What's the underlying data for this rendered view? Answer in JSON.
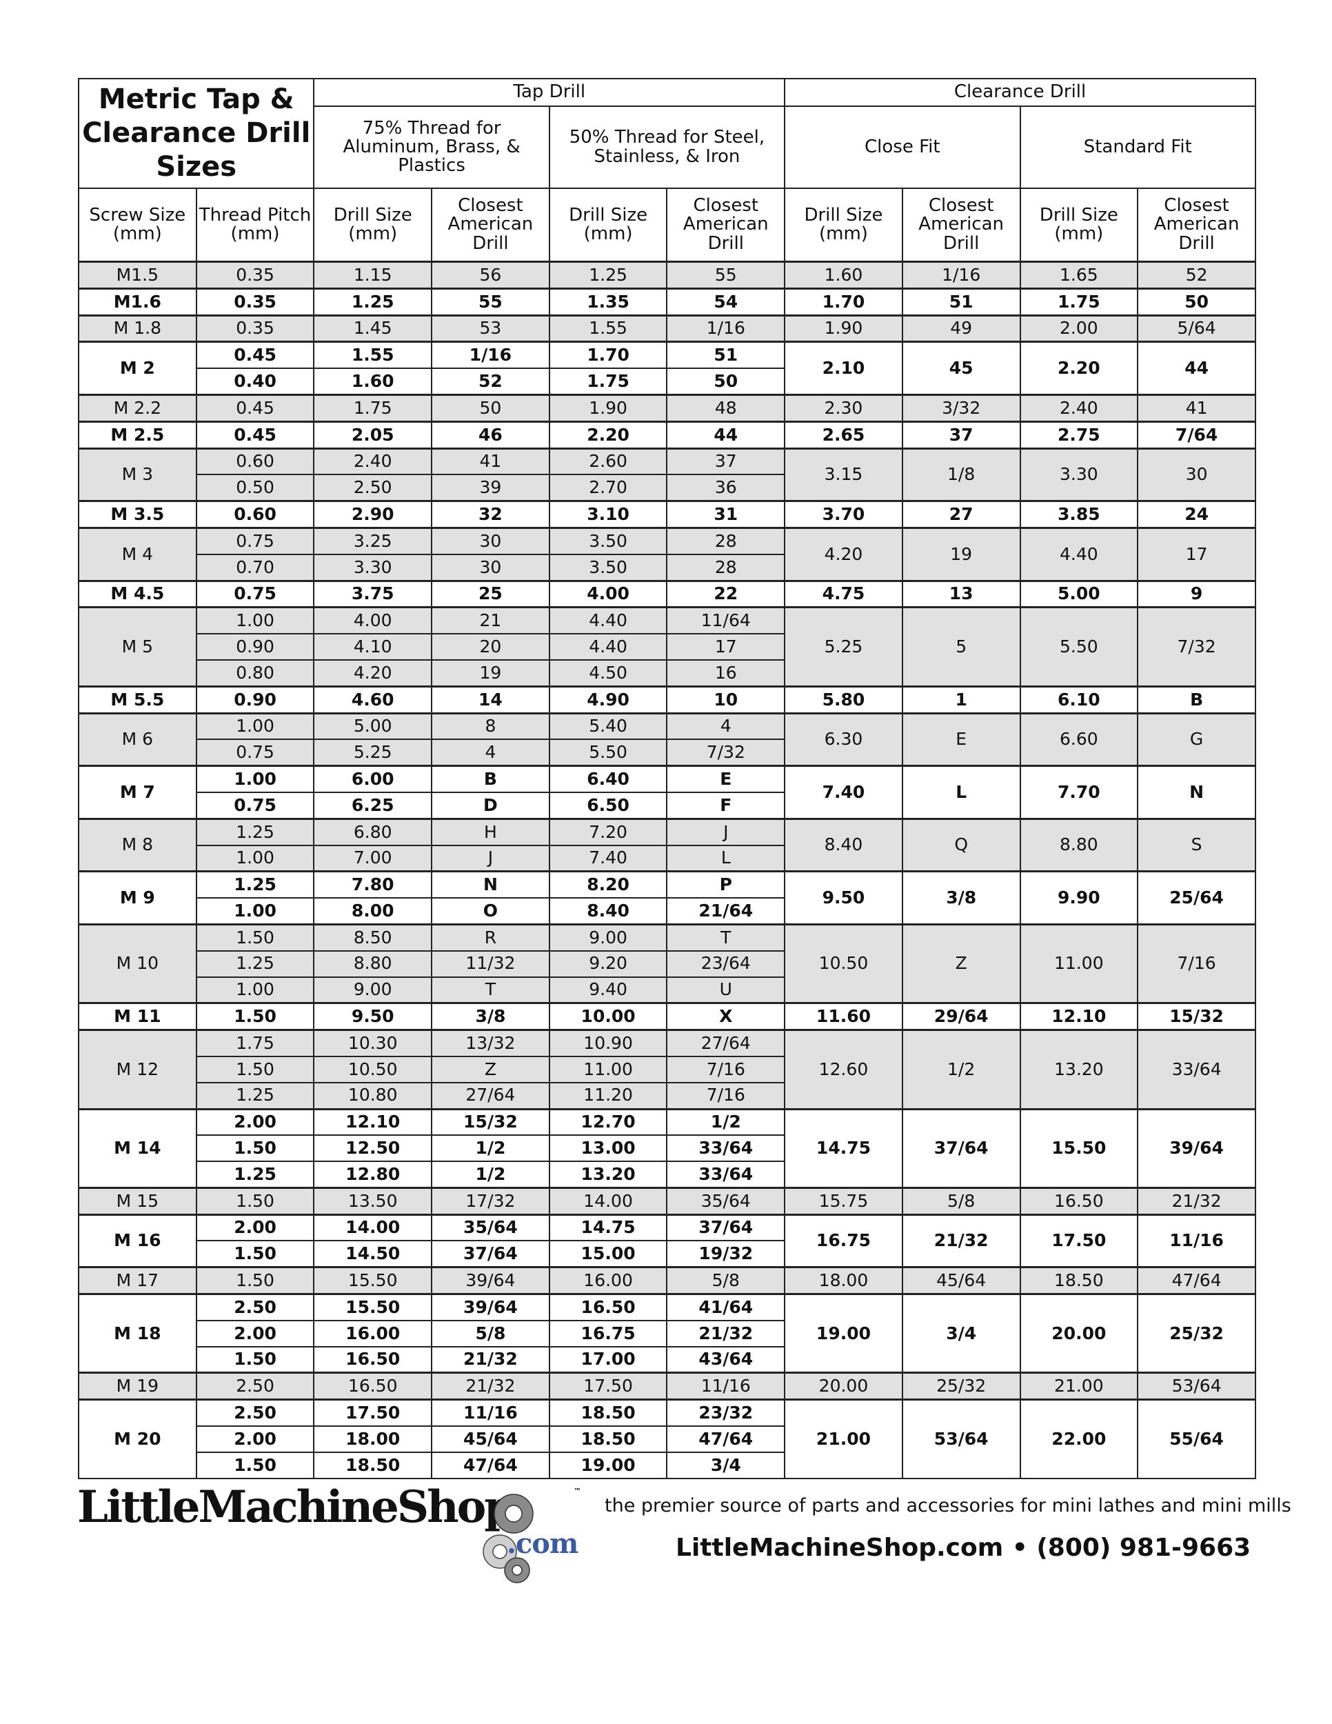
{
  "header": {
    "title": "Metric Tap & Clearance Drill Sizes",
    "tap_drill": "Tap Drill",
    "clearance_drill": "Clearance Drill",
    "thread75": "75% Thread for Aluminum, Brass, & Plastics",
    "thread50": "50% Thread for Steel, Stainless, & Iron",
    "close_fit": "Close Fit",
    "standard_fit": "Standard Fit",
    "columns": [
      "Screw Size (mm)",
      "Thread Pitch (mm)",
      "Drill Size (mm)",
      "Closest American Drill",
      "Drill Size (mm)",
      "Closest American Drill",
      "Drill Size (mm)",
      "Closest American Drill",
      "Drill Size (mm)",
      "Closest American Drill"
    ]
  },
  "colors": {
    "shaded_row": "#e1e1e1",
    "logo_com": "#3a5ba0"
  },
  "groups": [
    {
      "size": "M1.5",
      "close": [
        "1.60",
        "1/16"
      ],
      "std": [
        "1.65",
        "52"
      ],
      "threads": [
        [
          "0.35",
          "1.15",
          "56",
          "1.25",
          "55"
        ]
      ]
    },
    {
      "size": "M1.6",
      "close": [
        "1.70",
        "51"
      ],
      "std": [
        "1.75",
        "50"
      ],
      "threads": [
        [
          "0.35",
          "1.25",
          "55",
          "1.35",
          "54"
        ]
      ]
    },
    {
      "size": "M 1.8",
      "close": [
        "1.90",
        "49"
      ],
      "std": [
        "2.00",
        "5/64"
      ],
      "threads": [
        [
          "0.35",
          "1.45",
          "53",
          "1.55",
          "1/16"
        ]
      ]
    },
    {
      "size": "M 2",
      "close": [
        "2.10",
        "45"
      ],
      "std": [
        "2.20",
        "44"
      ],
      "threads": [
        [
          "0.45",
          "1.55",
          "1/16",
          "1.70",
          "51"
        ],
        [
          "0.40",
          "1.60",
          "52",
          "1.75",
          "50"
        ]
      ]
    },
    {
      "size": "M 2.2",
      "close": [
        "2.30",
        "3/32"
      ],
      "std": [
        "2.40",
        "41"
      ],
      "threads": [
        [
          "0.45",
          "1.75",
          "50",
          "1.90",
          "48"
        ]
      ]
    },
    {
      "size": "M 2.5",
      "close": [
        "2.65",
        "37"
      ],
      "std": [
        "2.75",
        "7/64"
      ],
      "threads": [
        [
          "0.45",
          "2.05",
          "46",
          "2.20",
          "44"
        ]
      ]
    },
    {
      "size": "M 3",
      "close": [
        "3.15",
        "1/8"
      ],
      "std": [
        "3.30",
        "30"
      ],
      "threads": [
        [
          "0.60",
          "2.40",
          "41",
          "2.60",
          "37"
        ],
        [
          "0.50",
          "2.50",
          "39",
          "2.70",
          "36"
        ]
      ]
    },
    {
      "size": "M 3.5",
      "close": [
        "3.70",
        "27"
      ],
      "std": [
        "3.85",
        "24"
      ],
      "threads": [
        [
          "0.60",
          "2.90",
          "32",
          "3.10",
          "31"
        ]
      ]
    },
    {
      "size": "M 4",
      "close": [
        "4.20",
        "19"
      ],
      "std": [
        "4.40",
        "17"
      ],
      "threads": [
        [
          "0.75",
          "3.25",
          "30",
          "3.50",
          "28"
        ],
        [
          "0.70",
          "3.30",
          "30",
          "3.50",
          "28"
        ]
      ]
    },
    {
      "size": "M 4.5",
      "close": [
        "4.75",
        "13"
      ],
      "std": [
        "5.00",
        "9"
      ],
      "threads": [
        [
          "0.75",
          "3.75",
          "25",
          "4.00",
          "22"
        ]
      ]
    },
    {
      "size": "M 5",
      "close": [
        "5.25",
        "5"
      ],
      "std": [
        "5.50",
        "7/32"
      ],
      "threads": [
        [
          "1.00",
          "4.00",
          "21",
          "4.40",
          "11/64"
        ],
        [
          "0.90",
          "4.10",
          "20",
          "4.40",
          "17"
        ],
        [
          "0.80",
          "4.20",
          "19",
          "4.50",
          "16"
        ]
      ]
    },
    {
      "size": "M 5.5",
      "close": [
        "5.80",
        "1"
      ],
      "std": [
        "6.10",
        "B"
      ],
      "threads": [
        [
          "0.90",
          "4.60",
          "14",
          "4.90",
          "10"
        ]
      ]
    },
    {
      "size": "M 6",
      "close": [
        "6.30",
        "E"
      ],
      "std": [
        "6.60",
        "G"
      ],
      "threads": [
        [
          "1.00",
          "5.00",
          "8",
          "5.40",
          "4"
        ],
        [
          "0.75",
          "5.25",
          "4",
          "5.50",
          "7/32"
        ]
      ]
    },
    {
      "size": "M 7",
      "close": [
        "7.40",
        "L"
      ],
      "std": [
        "7.70",
        "N"
      ],
      "threads": [
        [
          "1.00",
          "6.00",
          "B",
          "6.40",
          "E"
        ],
        [
          "0.75",
          "6.25",
          "D",
          "6.50",
          "F"
        ]
      ]
    },
    {
      "size": "M 8",
      "close": [
        "8.40",
        "Q"
      ],
      "std": [
        "8.80",
        "S"
      ],
      "threads": [
        [
          "1.25",
          "6.80",
          "H",
          "7.20",
          "J"
        ],
        [
          "1.00",
          "7.00",
          "J",
          "7.40",
          "L"
        ]
      ]
    },
    {
      "size": "M 9",
      "close": [
        "9.50",
        "3/8"
      ],
      "std": [
        "9.90",
        "25/64"
      ],
      "threads": [
        [
          "1.25",
          "7.80",
          "N",
          "8.20",
          "P"
        ],
        [
          "1.00",
          "8.00",
          "O",
          "8.40",
          "21/64"
        ]
      ]
    },
    {
      "size": "M 10",
      "close": [
        "10.50",
        "Z"
      ],
      "std": [
        "11.00",
        "7/16"
      ],
      "threads": [
        [
          "1.50",
          "8.50",
          "R",
          "9.00",
          "T"
        ],
        [
          "1.25",
          "8.80",
          "11/32",
          "9.20",
          "23/64"
        ],
        [
          "1.00",
          "9.00",
          "T",
          "9.40",
          "U"
        ]
      ]
    },
    {
      "size": "M 11",
      "close": [
        "11.60",
        "29/64"
      ],
      "std": [
        "12.10",
        "15/32"
      ],
      "threads": [
        [
          "1.50",
          "9.50",
          "3/8",
          "10.00",
          "X"
        ]
      ]
    },
    {
      "size": "M 12",
      "close": [
        "12.60",
        "1/2"
      ],
      "std": [
        "13.20",
        "33/64"
      ],
      "threads": [
        [
          "1.75",
          "10.30",
          "13/32",
          "10.90",
          "27/64"
        ],
        [
          "1.50",
          "10.50",
          "Z",
          "11.00",
          "7/16"
        ],
        [
          "1.25",
          "10.80",
          "27/64",
          "11.20",
          "7/16"
        ]
      ]
    },
    {
      "size": "M 14",
      "close": [
        "14.75",
        "37/64"
      ],
      "std": [
        "15.50",
        "39/64"
      ],
      "threads": [
        [
          "2.00",
          "12.10",
          "15/32",
          "12.70",
          "1/2"
        ],
        [
          "1.50",
          "12.50",
          "1/2",
          "13.00",
          "33/64"
        ],
        [
          "1.25",
          "12.80",
          "1/2",
          "13.20",
          "33/64"
        ]
      ]
    },
    {
      "size": "M 15",
      "close": [
        "15.75",
        "5/8"
      ],
      "std": [
        "16.50",
        "21/32"
      ],
      "threads": [
        [
          "1.50",
          "13.50",
          "17/32",
          "14.00",
          "35/64"
        ]
      ]
    },
    {
      "size": "M 16",
      "close": [
        "16.75",
        "21/32"
      ],
      "std": [
        "17.50",
        "11/16"
      ],
      "threads": [
        [
          "2.00",
          "14.00",
          "35/64",
          "14.75",
          "37/64"
        ],
        [
          "1.50",
          "14.50",
          "37/64",
          "15.00",
          "19/32"
        ]
      ]
    },
    {
      "size": "M 17",
      "close": [
        "18.00",
        "45/64"
      ],
      "std": [
        "18.50",
        "47/64"
      ],
      "threads": [
        [
          "1.50",
          "15.50",
          "39/64",
          "16.00",
          "5/8"
        ]
      ]
    },
    {
      "size": "M 18",
      "close": [
        "19.00",
        "3/4"
      ],
      "std": [
        "20.00",
        "25/32"
      ],
      "threads": [
        [
          "2.50",
          "15.50",
          "39/64",
          "16.50",
          "41/64"
        ],
        [
          "2.00",
          "16.00",
          "5/8",
          "16.75",
          "21/32"
        ],
        [
          "1.50",
          "16.50",
          "21/32",
          "17.00",
          "43/64"
        ]
      ]
    },
    {
      "size": "M 19",
      "close": [
        "20.00",
        "25/32"
      ],
      "std": [
        "21.00",
        "53/64"
      ],
      "threads": [
        [
          "2.50",
          "16.50",
          "21/32",
          "17.50",
          "11/16"
        ]
      ]
    },
    {
      "size": "M 20",
      "close": [
        "21.00",
        "53/64"
      ],
      "std": [
        "22.00",
        "55/64"
      ],
      "threads": [
        [
          "2.50",
          "17.50",
          "11/16",
          "18.50",
          "23/32"
        ],
        [
          "2.00",
          "18.00",
          "45/64",
          "18.50",
          "47/64"
        ],
        [
          "1.50",
          "18.50",
          "47/64",
          "19.00",
          "3/4"
        ]
      ]
    }
  ],
  "footer": {
    "logo_text": "LittleMachineShop",
    "logo_suffix": ".com",
    "trademark": "™",
    "tagline": "the premier source of parts and accessories for mini lathes and mini mills",
    "contact": "LittleMachineShop.com • (800) 981-9663"
  }
}
